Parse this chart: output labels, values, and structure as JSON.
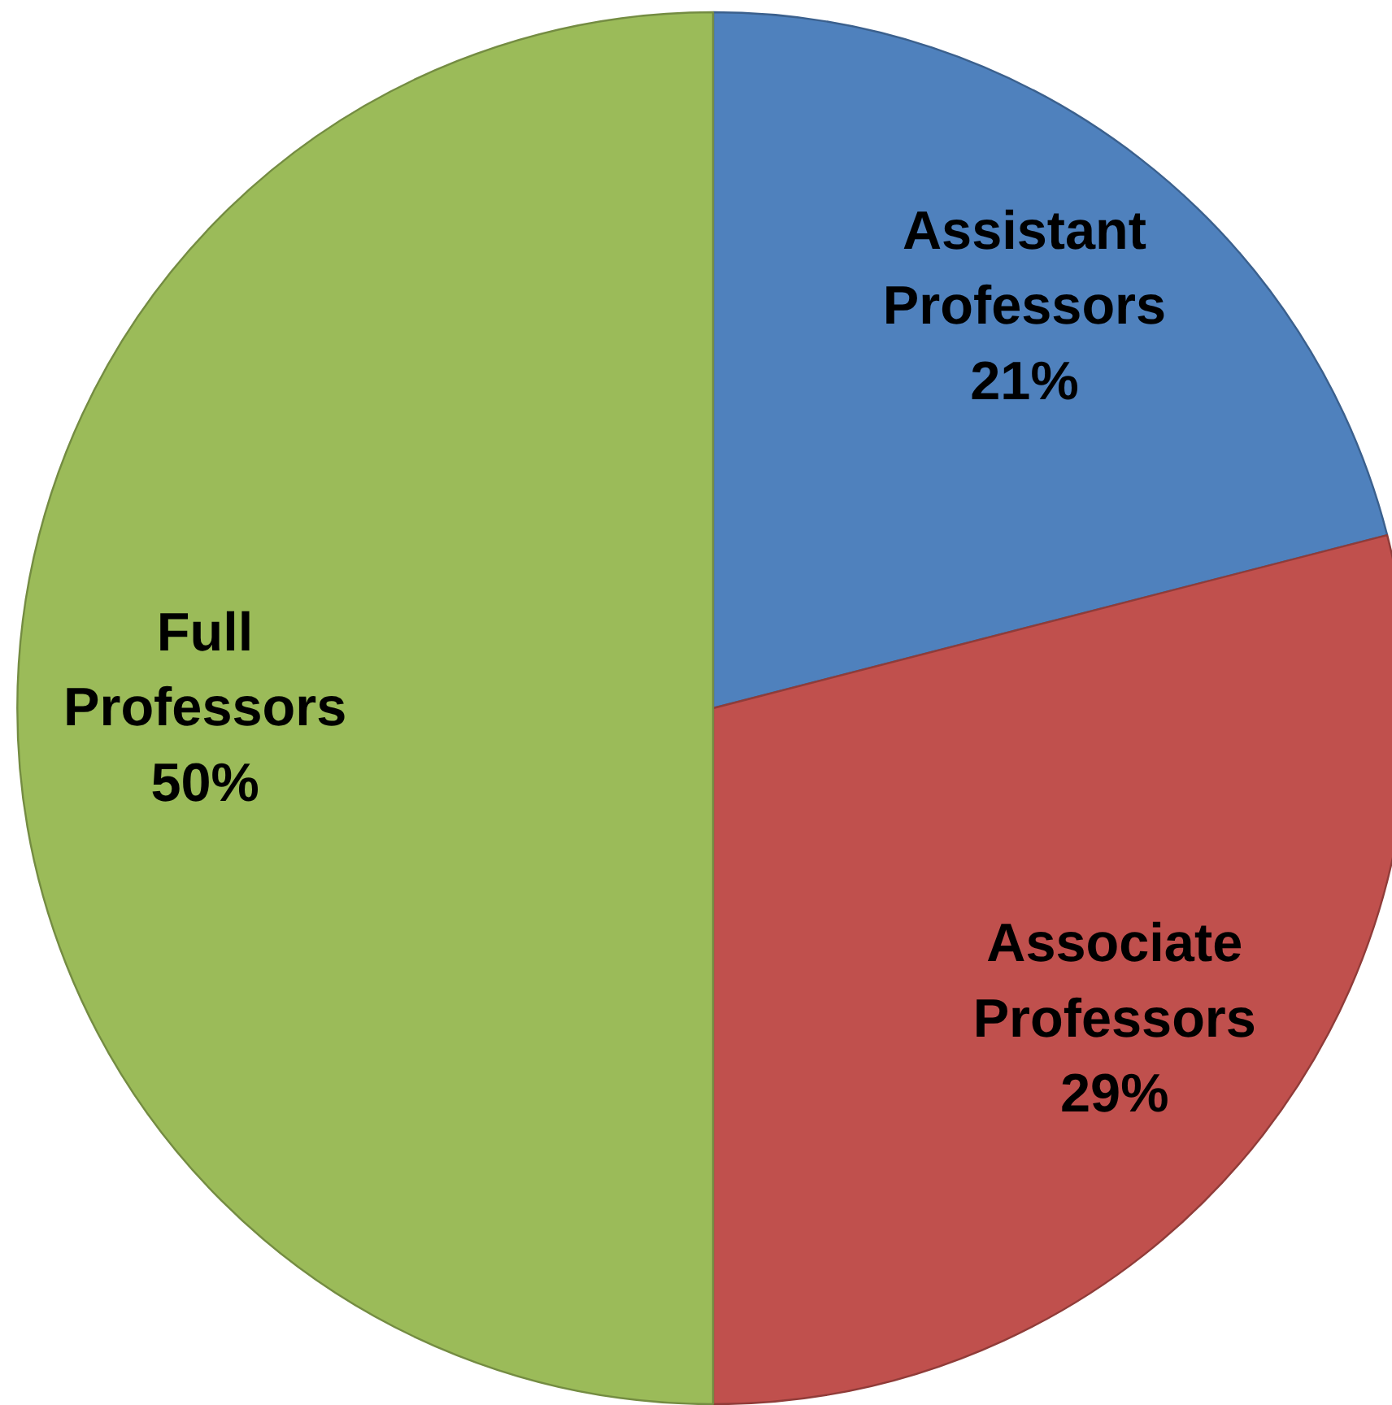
{
  "chart_data": {
    "type": "pie",
    "categories": [
      "Assistant Professors",
      "Associate Professors",
      "Full Professors"
    ],
    "values": [
      21,
      29,
      50
    ],
    "colors": [
      "#4f81bd",
      "#c0504d",
      "#9bbb59"
    ],
    "value_labels": [
      "21%",
      "29%",
      "50%"
    ]
  }
}
